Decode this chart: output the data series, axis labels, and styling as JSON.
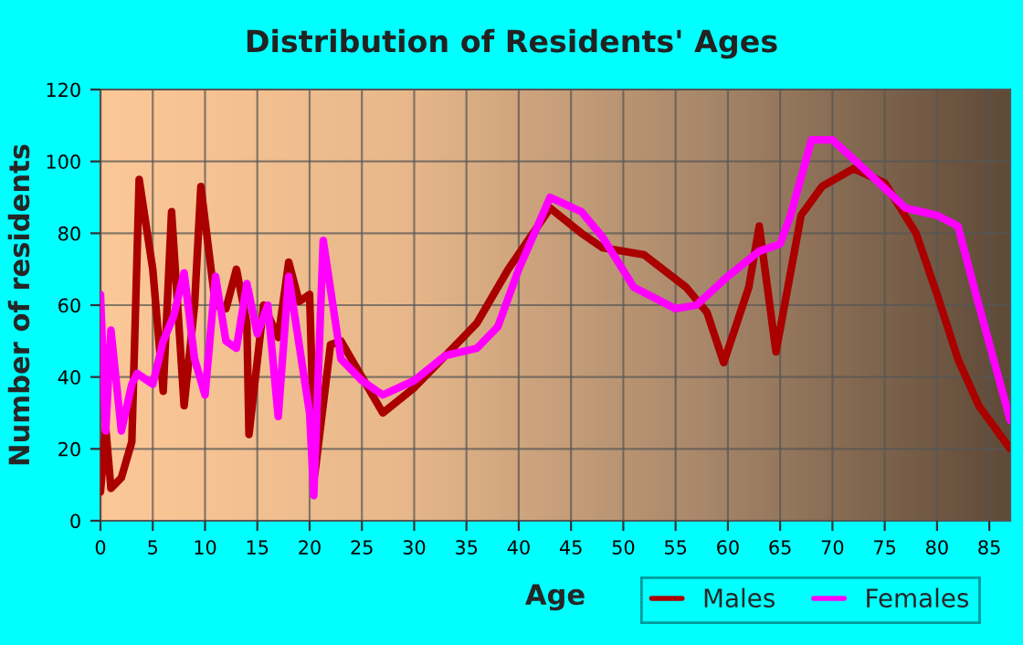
{
  "chart_data": {
    "type": "line",
    "title": "Distribution of Residents' Ages",
    "xlabel": "Age",
    "ylabel": "Number of residents",
    "xlim": [
      0,
      87
    ],
    "xticks": [
      0,
      5,
      10,
      15,
      20,
      25,
      30,
      35,
      40,
      45,
      50,
      55,
      60,
      65,
      70,
      75,
      80,
      85
    ],
    "ylim": [
      0,
      120
    ],
    "yticks": [
      0,
      20,
      40,
      60,
      80,
      100,
      120
    ],
    "grid": true,
    "legend": "bottom right",
    "series": [
      {
        "name": "Males",
        "color": "#aa0000",
        "x": [
          0,
          0.5,
          1,
          2,
          3,
          3.7,
          5,
          6,
          6.8,
          8,
          9,
          9.6,
          11,
          12,
          13,
          14,
          14.2,
          15.6,
          17,
          18,
          19,
          20,
          20.5,
          22,
          23,
          24,
          25,
          27,
          30,
          33,
          36,
          39,
          43,
          46,
          48,
          52,
          56,
          58,
          59.6,
          62,
          63,
          64.6,
          67,
          69,
          72,
          75,
          78,
          80,
          82,
          84,
          87
        ],
        "values": [
          8,
          26,
          9,
          12,
          22,
          95,
          70,
          36,
          86,
          32,
          60,
          93,
          60,
          59,
          70,
          55,
          24,
          60,
          51,
          72,
          61,
          63,
          13,
          49,
          50,
          45,
          40,
          30,
          37,
          46,
          55,
          70,
          87,
          80,
          76,
          74,
          65,
          58,
          44,
          65,
          82,
          47,
          85,
          93,
          98,
          94,
          80,
          63,
          45,
          32,
          20
        ]
      },
      {
        "name": "Females",
        "color": "#ff00ff",
        "x": [
          0,
          0.5,
          1,
          2,
          3,
          3.5,
          5,
          6,
          7,
          8,
          9,
          10,
          11,
          12,
          13,
          14,
          15,
          16,
          17,
          18,
          20,
          20.4,
          21.3,
          23,
          25,
          27,
          30,
          33,
          36,
          38,
          40,
          43,
          46,
          48,
          51,
          55,
          57,
          60,
          63,
          65,
          66,
          68,
          70,
          73,
          77,
          80,
          82,
          84,
          87
        ],
        "values": [
          63,
          25,
          53,
          25,
          38,
          41,
          38,
          50,
          57,
          69,
          45,
          35,
          68,
          50,
          48,
          66,
          52,
          60,
          29,
          68,
          30,
          7,
          78,
          45,
          39,
          35,
          39,
          46,
          48,
          54,
          70,
          90,
          86,
          79,
          65,
          59,
          60,
          68,
          75,
          77,
          85,
          106,
          106,
          98,
          87,
          85,
          82,
          60,
          28
        ]
      }
    ]
  }
}
